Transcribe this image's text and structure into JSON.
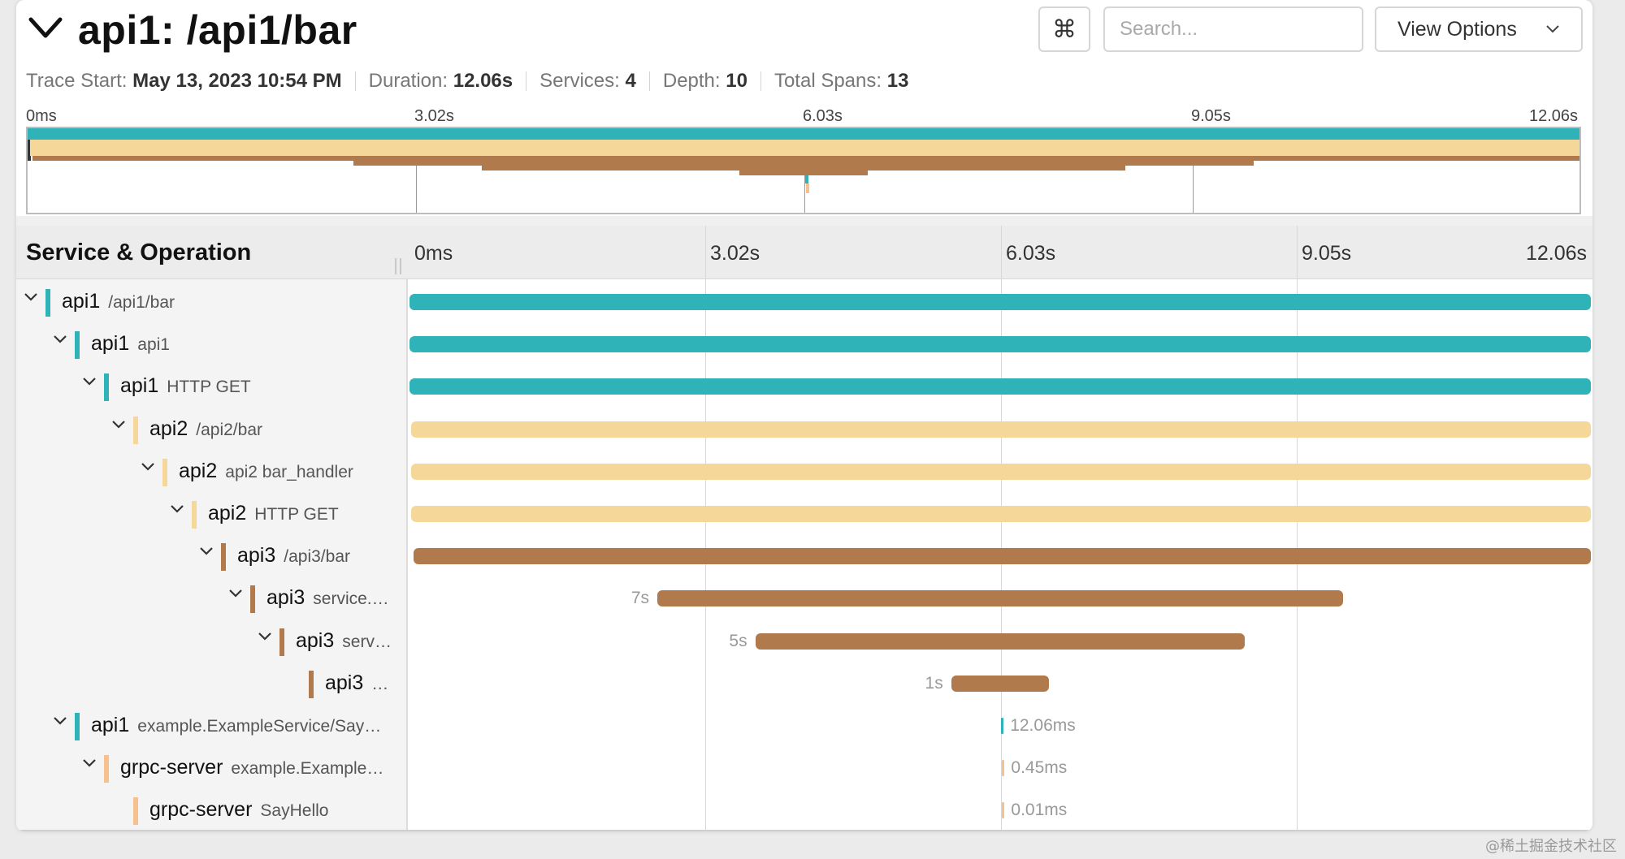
{
  "header": {
    "title": "api1: /api1/bar",
    "cmd_glyph": "⌘",
    "search_placeholder": "Search...",
    "view_options_label": "View Options"
  },
  "meta": {
    "trace_start_label": "Trace Start:",
    "trace_start_value": "May 13, 2023 10:54 PM",
    "duration_label": "Duration:",
    "duration_value": "12.06s",
    "services_label": "Services:",
    "services_value": "4",
    "depth_label": "Depth:",
    "depth_value": "10",
    "total_spans_label": "Total Spans:",
    "total_spans_value": "13"
  },
  "ticks": [
    "0ms",
    "3.02s",
    "6.03s",
    "9.05s",
    "12.06s"
  ],
  "table": {
    "column_title": "Service & Operation"
  },
  "colors": {
    "api1": "#2fb3b8",
    "api2": "#f5d79a",
    "api3": "#b07a4c",
    "grpc-server": "#f7c08f"
  },
  "total_duration_s": 12.06,
  "spans": [
    {
      "service": "api1",
      "operation": "/api1/bar",
      "depth": 0,
      "collapsible": true,
      "start_s": 0.0,
      "end_s": 12.06,
      "duration_label": ""
    },
    {
      "service": "api1",
      "operation": "api1",
      "depth": 1,
      "collapsible": true,
      "start_s": 0.0,
      "end_s": 12.06,
      "duration_label": ""
    },
    {
      "service": "api1",
      "operation": "HTTP GET",
      "depth": 2,
      "collapsible": true,
      "start_s": 0.0,
      "end_s": 12.06,
      "duration_label": ""
    },
    {
      "service": "api2",
      "operation": "/api2/bar",
      "depth": 3,
      "collapsible": true,
      "start_s": 0.02,
      "end_s": 12.06,
      "duration_label": ""
    },
    {
      "service": "api2",
      "operation": "api2 bar_handler",
      "depth": 4,
      "collapsible": true,
      "start_s": 0.02,
      "end_s": 12.06,
      "duration_label": ""
    },
    {
      "service": "api2",
      "operation": "HTTP GET",
      "depth": 5,
      "collapsible": true,
      "start_s": 0.02,
      "end_s": 12.06,
      "duration_label": ""
    },
    {
      "service": "api3",
      "operation": "/api3/bar",
      "depth": 6,
      "collapsible": true,
      "start_s": 0.04,
      "end_s": 12.06,
      "duration_label": ""
    },
    {
      "service": "api3",
      "operation": "service.…",
      "depth": 7,
      "collapsible": true,
      "start_s": 2.53,
      "end_s": 9.53,
      "duration_label": "7s"
    },
    {
      "service": "api3",
      "operation": "serv…",
      "depth": 8,
      "collapsible": true,
      "start_s": 3.53,
      "end_s": 8.53,
      "duration_label": "5s"
    },
    {
      "service": "api3",
      "operation": "…",
      "depth": 9,
      "collapsible": false,
      "start_s": 5.53,
      "end_s": 6.53,
      "duration_label": "1s"
    },
    {
      "service": "api1",
      "operation": "example.ExampleService/Say…",
      "depth": 1,
      "collapsible": true,
      "start_s": 6.04,
      "end_s": 6.06,
      "duration_label": "12.06ms"
    },
    {
      "service": "grpc-server",
      "operation": "example.Example…",
      "depth": 2,
      "collapsible": true,
      "start_s": 6.05,
      "end_s": 6.0505,
      "duration_label": "0.45ms"
    },
    {
      "service": "grpc-server",
      "operation": "SayHello",
      "depth": 3,
      "collapsible": false,
      "start_s": 6.05,
      "end_s": 6.05001,
      "duration_label": "0.01ms"
    }
  ],
  "watermark": "@稀土掘金技术社区"
}
